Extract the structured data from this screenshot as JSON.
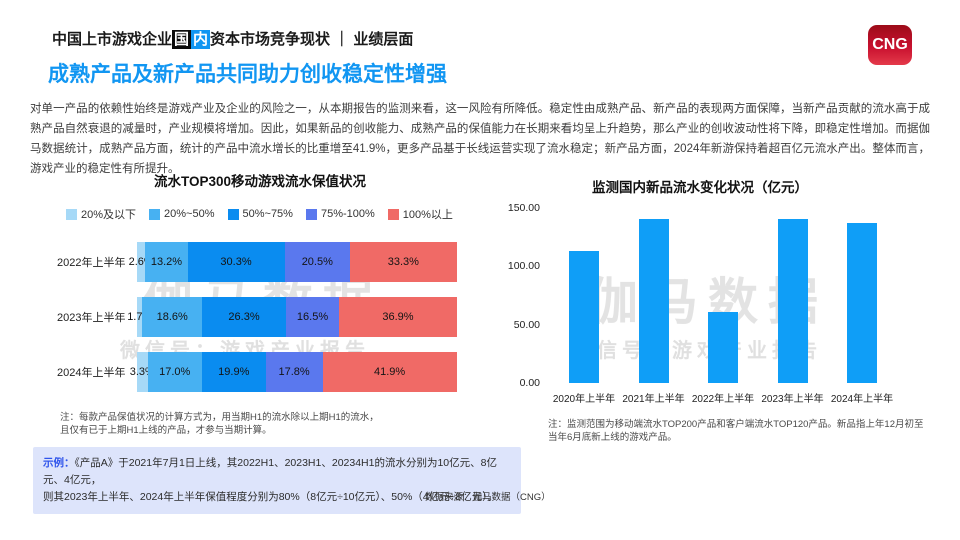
{
  "header": {
    "title_part1": "中国上市游戏企业",
    "highlight": [
      "国",
      "内"
    ],
    "title_part2": "资本市场竞争现状 ｜ 业绩层面",
    "logo": "CNG"
  },
  "slide_title": "成熟产品及新产品共同助力创收稳定性增强",
  "paragraph": "对单一产品的依赖性始终是游戏产业及企业的风险之一，从本期报告的监测来看，这一风险有所降低。稳定性由成熟产品、新产品的表现两方面保障，当新产品贡献的流水高于成熟产品自然衰退的减量时，产业规模将增加。因此，如果新品的创收能力、成熟产品的保值能力在长期来看均呈上升趋势，那么产业的创收波动性将下降，即稳定性增加。而据伽马数据统计，成熟产品方面，统计的产品中流水增长的比重增至41.9%，更多产品基于长线运营实现了流水稳定；新产品方面，2024年新游保持着超百亿元流水产出。整体而言，游戏产业的稳定性有所提升。",
  "colors": {
    "accent_blue": "#1196f2",
    "logo_red": "#c8102e",
    "example_box_bg": "#dde4fb",
    "example_label_blue": "#2f54eb",
    "watermark_gray": "#c9c9c9"
  },
  "chart_data": [
    {
      "type": "bar",
      "subtype": "stacked-horizontal",
      "title": "流水TOP300移动游戏流水保值状况",
      "categories": [
        "2022年上半年",
        "2023年上半年",
        "2024年上半年"
      ],
      "series": [
        {
          "name": "20%及以下",
          "color": "#a6d9f7",
          "values": [
            2.6,
            1.7,
            3.3
          ]
        },
        {
          "name": "20%~50%",
          "color": "#47b1f2",
          "values": [
            13.2,
            18.6,
            17.0
          ]
        },
        {
          "name": "50%~75%",
          "color": "#0a8cf0",
          "values": [
            30.3,
            26.3,
            19.9
          ]
        },
        {
          "name": "75%-100%",
          "color": "#5a78ee",
          "values": [
            20.5,
            16.5,
            17.8
          ]
        },
        {
          "name": "100%以上",
          "color": "#f06a66",
          "values": [
            33.3,
            36.9,
            41.9
          ]
        }
      ],
      "unit": "%",
      "legend_position": "top",
      "xlim": [
        0,
        100
      ]
    },
    {
      "type": "bar",
      "title": "监测国内新品流水变化状况（亿元）",
      "categories": [
        "2020年上半年",
        "2021年上半年",
        "2022年上半年",
        "2023年上半年",
        "2024年上半年"
      ],
      "values": [
        113,
        141,
        61,
        141,
        137
      ],
      "bar_color": "#0f9ef7",
      "ylim": [
        0,
        150
      ],
      "yticks": [
        "150.00",
        "100.00",
        "50.00",
        "0.00"
      ],
      "grid": false,
      "legend_position": "none"
    }
  ],
  "left_note": {
    "line1": "注：每款产品保值状况的计算方式为，用当期H1的流水除以上期H1的流水，",
    "line2": "且仅有已于上期H1上线的产品，才参与当期计算。"
  },
  "example_box": {
    "label": "示例：",
    "line1": "《产品A》于2021年7月1日上线，其2022H1、2023H1、20234H1的流水分别为10亿元、8亿元、4亿元，",
    "line2": "则其2023年上半年、2024年上半年保值程度分别为80%（8亿元÷10亿元）、50%（4亿元÷8亿元）。"
  },
  "right_note": {
    "line1": "注：监测范围为移动端流水TOP200产品和客户端流水TOP120产品。新品指上年12月初至",
    "line2": "当年6月底新上线的游戏产品。"
  },
  "source": "数据来源：伽马数据（CNG）",
  "watermark": {
    "name": "伽马数据",
    "wechat": "微信号：游戏产业报告"
  }
}
